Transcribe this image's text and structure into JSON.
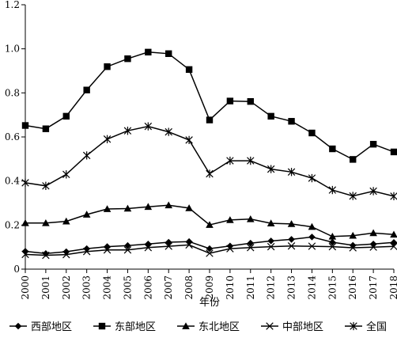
{
  "chart_data": {
    "type": "line",
    "xlabel": "年份",
    "ylabel": "",
    "ylim": [
      0,
      1.2
    ],
    "y_ticks": [
      "0",
      "0.2",
      "0.4",
      "0.6",
      "0.8",
      "1.0",
      "1.2"
    ],
    "categories": [
      "2000",
      "2001",
      "2002",
      "2003",
      "2004",
      "2005",
      "2006",
      "2007",
      "2008",
      "2009",
      "2010",
      "2011",
      "2012",
      "2013",
      "2014",
      "2015",
      "2016",
      "2017",
      "2018"
    ],
    "grid": false,
    "legend_position": "bottom",
    "series": [
      {
        "name": "西部地区",
        "marker": "diamond",
        "values": [
          0.081,
          0.071,
          0.079,
          0.093,
          0.102,
          0.107,
          0.114,
          0.122,
          0.125,
          0.093,
          0.105,
          0.118,
          0.128,
          0.135,
          0.146,
          0.122,
          0.108,
          0.114,
          0.121
        ]
      },
      {
        "name": "东部地区",
        "marker": "square",
        "values": [
          0.652,
          0.637,
          0.694,
          0.813,
          0.919,
          0.955,
          0.985,
          0.978,
          0.906,
          0.677,
          0.763,
          0.761,
          0.694,
          0.671,
          0.618,
          0.546,
          0.498,
          0.567,
          0.532
        ]
      },
      {
        "name": "东北地区",
        "marker": "triangle",
        "values": [
          0.209,
          0.209,
          0.217,
          0.248,
          0.273,
          0.275,
          0.283,
          0.29,
          0.277,
          0.201,
          0.223,
          0.227,
          0.208,
          0.205,
          0.192,
          0.148,
          0.152,
          0.164,
          0.157
        ]
      },
      {
        "name": "中部地区",
        "marker": "x",
        "values": [
          0.067,
          0.063,
          0.066,
          0.08,
          0.087,
          0.087,
          0.098,
          0.104,
          0.11,
          0.072,
          0.093,
          0.098,
          0.102,
          0.105,
          0.104,
          0.102,
          0.097,
          0.1,
          0.103
        ]
      },
      {
        "name": "全国",
        "marker": "asterisk",
        "values": [
          0.392,
          0.378,
          0.43,
          0.516,
          0.59,
          0.628,
          0.648,
          0.623,
          0.586,
          0.433,
          0.492,
          0.492,
          0.454,
          0.441,
          0.413,
          0.359,
          0.332,
          0.354,
          0.331
        ]
      }
    ]
  }
}
